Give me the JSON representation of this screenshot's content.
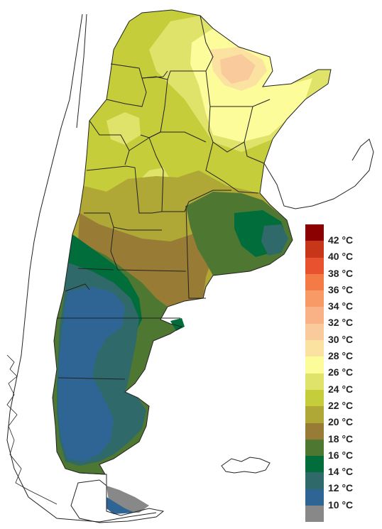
{
  "legend": {
    "unit": "°C",
    "colors": [
      "#8b0000",
      "#c8361a",
      "#e9522f",
      "#f47b45",
      "#f89a65",
      "#f9b285",
      "#f9cb9c",
      "#fbe2a0",
      "#fcfc9a",
      "#e0e369",
      "#c6cd3b",
      "#afa736",
      "#987c36",
      "#4e7832",
      "#006d3a",
      "#30696a",
      "#2f6595",
      "#888888"
    ],
    "labels": [
      "42",
      "40",
      "38",
      "36",
      "34",
      "32",
      "30",
      "28",
      "26",
      "24",
      "22",
      "20",
      "18",
      "16",
      "14",
      "12",
      "10"
    ]
  },
  "map_colors": {
    "t10": "#888888",
    "t12": "#2f6595",
    "t14": "#30696a",
    "t16": "#006d3a",
    "t18": "#4e7832",
    "t20": "#987c36",
    "t22": "#afa736",
    "t24": "#c6cd3b",
    "t26": "#e0e369",
    "t28": "#fcfc9a",
    "t30": "#fbe2a0",
    "t32": "#f9cb9c",
    "border": "#222222"
  }
}
